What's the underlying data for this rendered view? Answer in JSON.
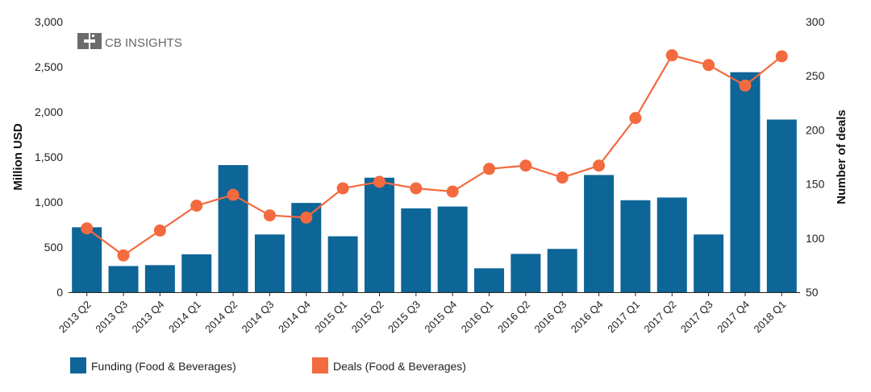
{
  "logo": {
    "text": "CB INSIGHTS"
  },
  "colors": {
    "bar": "#0e6597",
    "line": "#f36a3e",
    "axis": "#222222",
    "logo": "#6b6b6b"
  },
  "chart_data": {
    "type": "bar",
    "categories": [
      "2013 Q2",
      "2013 Q3",
      "2013 Q4",
      "2014 Q1",
      "2014 Q2",
      "2014 Q3",
      "2014 Q4",
      "2015 Q1",
      "2015 Q2",
      "2015 Q3",
      "2015 Q4",
      "2016 Q1",
      "2016 Q2",
      "2016 Q3",
      "2016 Q4",
      "2017 Q1",
      "2017 Q2",
      "2017 Q3",
      "2017 Q4",
      "2018 Q1"
    ],
    "series": [
      {
        "name": "Funding (Food & Beverages)",
        "kind": "bar",
        "axis": "left",
        "values": [
          720,
          290,
          300,
          420,
          1410,
          640,
          990,
          620,
          1270,
          930,
          950,
          265,
          425,
          480,
          1300,
          1020,
          1050,
          640,
          2440,
          1915
        ]
      },
      {
        "name": "Deals (Food & Beverages)",
        "kind": "line",
        "axis": "right",
        "values": [
          109,
          84,
          107,
          130,
          140,
          121,
          119,
          146,
          152,
          146,
          143,
          164,
          167,
          156,
          167,
          211,
          269,
          260,
          241,
          268
        ]
      }
    ],
    "ylabel": "Million USD",
    "ylabel_right": "Number of deals",
    "ylim": [
      0,
      3000
    ],
    "ylim_right": [
      50,
      300
    ],
    "yticks": [
      "0",
      "500",
      "1,000",
      "1,500",
      "2,000",
      "2,500",
      "3,000"
    ],
    "yticks_right": [
      "50",
      "100",
      "150",
      "200",
      "250",
      "300"
    ],
    "grid": false,
    "legend": "bottom-left"
  }
}
